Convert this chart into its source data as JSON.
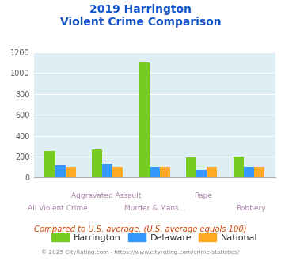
{
  "title_line1": "2019 Harrington",
  "title_line2": "Violent Crime Comparison",
  "categories": [
    "All Violent Crime",
    "Aggravated Assault",
    "Murder & Mans...",
    "Rape",
    "Robbery"
  ],
  "series": {
    "Harrington": [
      255,
      265,
      1100,
      190,
      200
    ],
    "Delaware": [
      120,
      130,
      100,
      70,
      100
    ],
    "National": [
      100,
      100,
      100,
      100,
      100
    ]
  },
  "colors": {
    "Harrington": "#77cc22",
    "Delaware": "#3399ff",
    "National": "#ffaa22"
  },
  "ylim": [
    0,
    1200
  ],
  "yticks": [
    0,
    200,
    400,
    600,
    800,
    1000,
    1200
  ],
  "title_color": "#1155cc",
  "background_color": "#ffffff",
  "plot_bg": "#ddeef5",
  "footer_text": "Compared to U.S. average. (U.S. average equals 100)",
  "footer_color": "#cc4400",
  "copyright_text": "© 2025 CityRating.com - https://www.cityrating.com/crime-statistics/",
  "copyright_color": "#888888",
  "bar_width": 0.22,
  "label_top": [
    false,
    true,
    false,
    true,
    false
  ],
  "label_color": "#aa88aa"
}
